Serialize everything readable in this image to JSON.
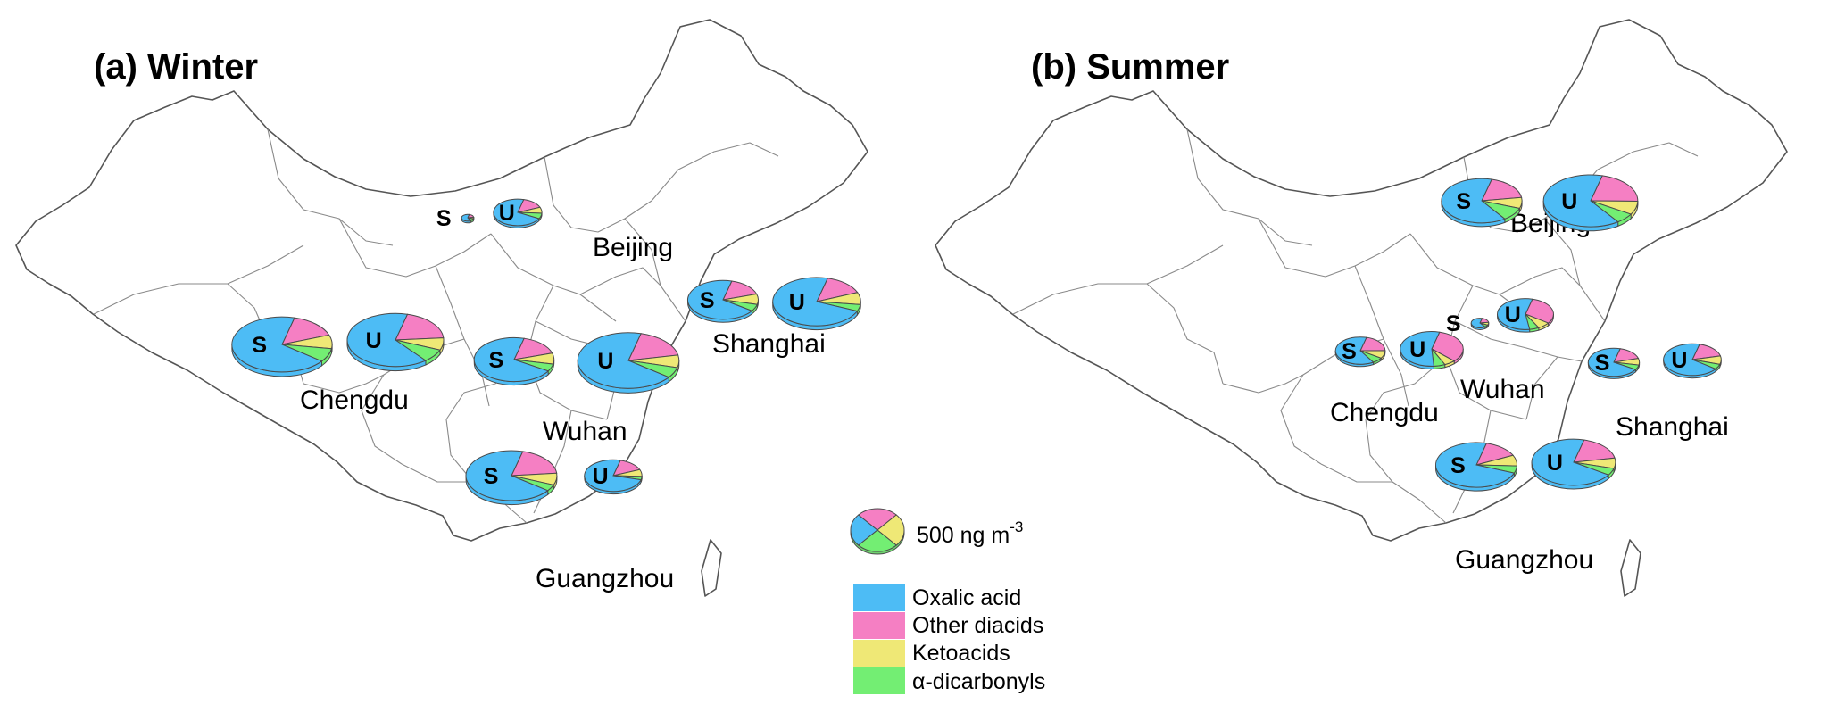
{
  "colors": {
    "oxalic": "#4dbcf5",
    "other_diacids": "#f57fc3",
    "ketoacids": "#efe876",
    "dicarbonyls": "#73ee73"
  },
  "chart_data": {
    "type": "pie",
    "title": "",
    "unit": "ng m-3",
    "categories": [
      "Oxalic acid",
      "Other diacids",
      "Ketoacids",
      "α-dicarbonyls"
    ],
    "scale_reference": {
      "value": 500,
      "label": "500 ng m",
      "unit_exponent": "-3"
    },
    "panels": [
      {
        "title": "(a)  Winter",
        "cities": [
          {
            "name": "Beijing",
            "sites": [
              {
                "site": "S",
                "values": [
                  16,
                  5,
                  2,
                  3
                ]
              },
              {
                "site": "U",
                "values": [
                  290,
                  60,
                  30,
                  27
                ]
              }
            ]
          },
          {
            "name": "Shanghai",
            "sites": [
              {
                "site": "S",
                "values": [
                  600,
                  140,
                  75,
                  50
                ]
              },
              {
                "site": "U",
                "values": [
                  980,
                  200,
                  110,
                  60
                ]
              }
            ]
          },
          {
            "name": "Chengdu",
            "sites": [
              {
                "site": "S",
                "values": [
                  1200,
                  270,
                  140,
                  140
                ]
              },
              {
                "site": "U",
                "values": [
                  1050,
                  320,
                  120,
                  130
                ]
              }
            ]
          },
          {
            "name": "Wuhan",
            "sites": [
              {
                "site": "S",
                "values": [
                  780,
                  180,
                  90,
                  60
                ]
              },
              {
                "site": "U",
                "values": [
                  1230,
                  320,
                  130,
                  110
                ]
              }
            ]
          },
          {
            "name": "Guangzhou",
            "sites": [
              {
                "site": "S",
                "values": [
                  990,
                  280,
                  110,
                  60
                ]
              },
              {
                "site": "U",
                "values": [
                  430,
                  85,
                  40,
                  20
                ]
              }
            ]
          }
        ]
      },
      {
        "title": "(b)  Summer",
        "cities": [
          {
            "name": "Beijing",
            "sites": [
              {
                "site": "S",
                "values": [
                  720,
                  210,
                  90,
                  110
                ]
              },
              {
                "site": "U",
                "values": [
                  990,
                  330,
                  130,
                  100
                ]
              }
            ]
          },
          {
            "name": "Wuhan",
            "sites": [
              {
                "site": "S",
                "values": [
                  34,
                  10,
                  5,
                  4
                ]
              },
              {
                "site": "U",
                "values": [
                  310,
                  170,
                  40,
                  30
                ]
              }
            ]
          },
          {
            "name": "Chengdu",
            "sites": [
              {
                "site": "S",
                "values": [
                  270,
                  90,
                  40,
                  30
                ]
              },
              {
                "site": "U",
                "values": [
                  380,
                  230,
                  40,
                  40
                ]
              }
            ]
          },
          {
            "name": "Shanghai",
            "sites": [
              {
                "site": "S",
                "values": [
                  320,
                  75,
                  35,
                  25
                ]
              },
              {
                "site": "U",
                "values": [
                  400,
                  100,
                  50,
                  30
                ]
              }
            ]
          },
          {
            "name": "Guangzhou",
            "sites": [
              {
                "site": "S",
                "values": [
                  840,
                  160,
                  90,
                  60
                ]
              },
              {
                "site": "U",
                "values": [
                  850,
                  220,
                  90,
                  60
                ]
              }
            ]
          }
        ]
      }
    ]
  },
  "legend": {
    "items": [
      "Oxalic acid",
      "Other diacids",
      "Ketoacids",
      "α-dicarbonyls"
    ],
    "scale_label": "500 ng m",
    "scale_exponent": "-3"
  }
}
